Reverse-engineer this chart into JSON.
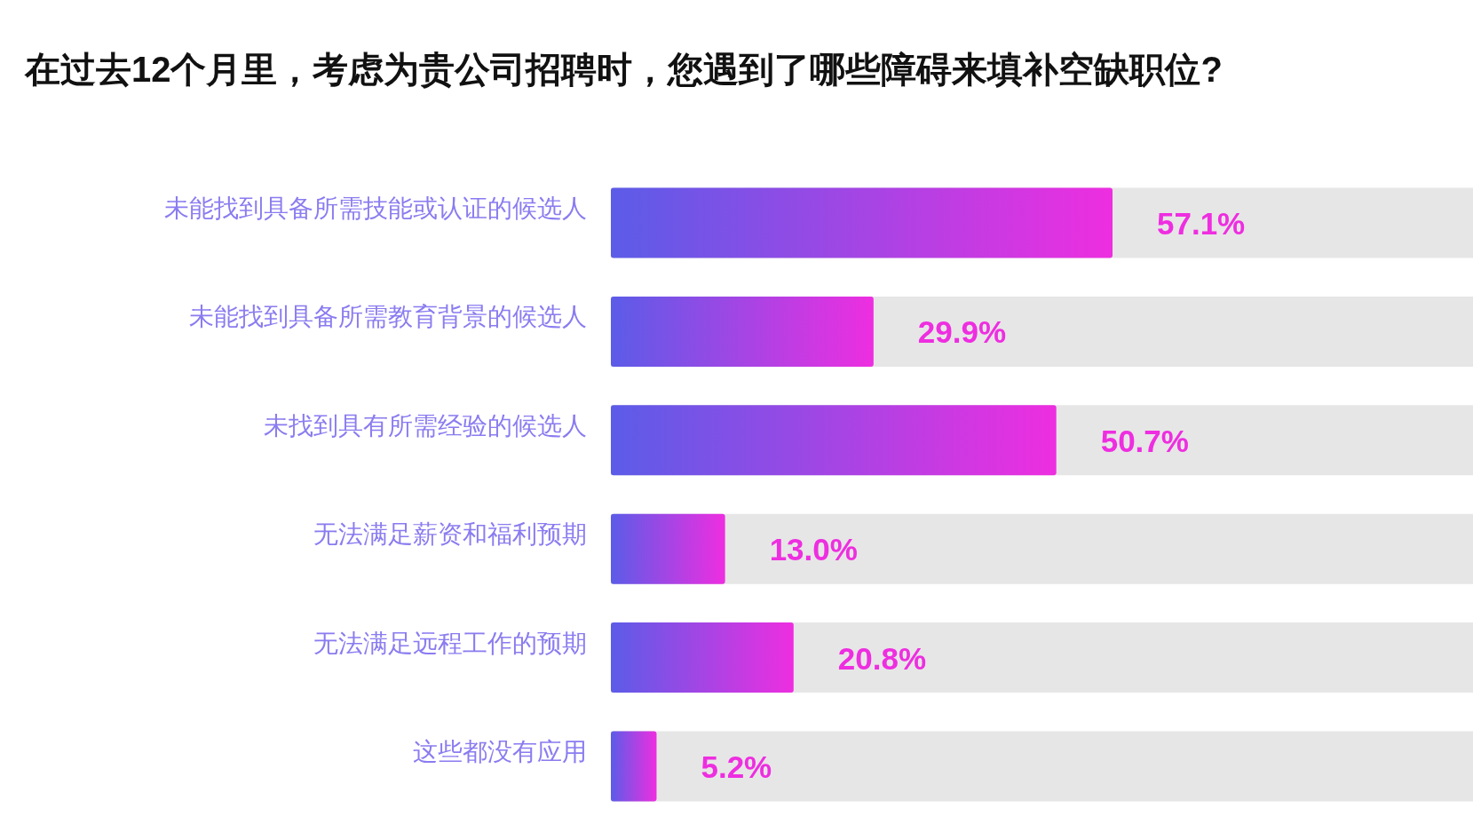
{
  "chart_data": {
    "type": "bar",
    "orientation": "horizontal",
    "title": "在过去12个月里，考虑为贵公司招聘时，您遇到了哪些障碍来填补空缺职位?",
    "categories": [
      "未能找到具备所需技能或认证的候选人",
      "未能找到具备所需教育背景的候选人",
      "未找到具有所需经验的候选人",
      "无法满足薪资和福利预期",
      "无法满足远程工作的预期",
      "这些都没有应用"
    ],
    "values": [
      57.1,
      29.9,
      50.7,
      13.0,
      20.8,
      5.2
    ],
    "value_labels": [
      "57.1%",
      "29.9%",
      "50.7%",
      "13.0%",
      "20.8%",
      "5.2%"
    ],
    "color": "#ee2ee0"
  }
}
